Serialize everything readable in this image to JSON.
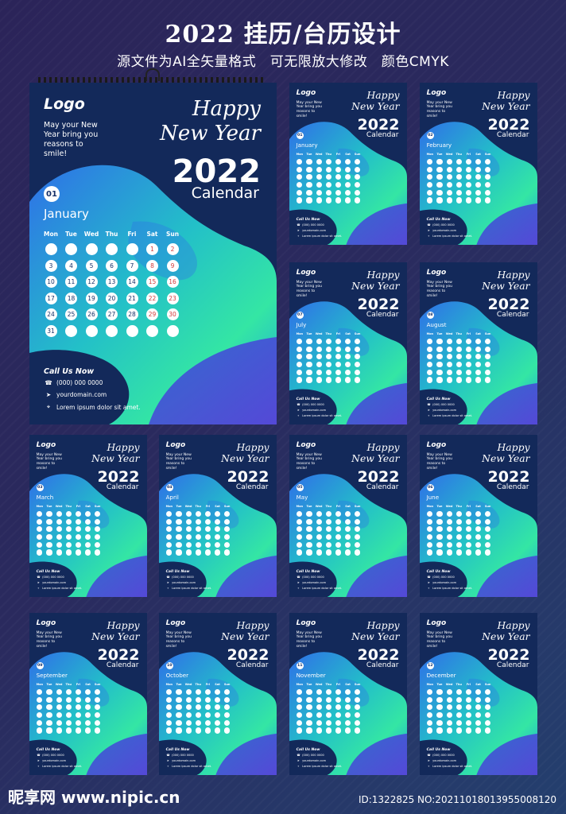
{
  "header": {
    "title": "2022 挂历/台历设计",
    "subtitle": "源文件为AI全矢量格式　可无限放大修改　颜色CMYK"
  },
  "calendar": {
    "logo": "Logo",
    "tagline": [
      "May your New",
      "Year bring you",
      "reasons to",
      "smile!"
    ],
    "tagline_small": [
      "May your New",
      "Year bring you",
      "reasons to",
      "smile!"
    ],
    "happy": "Happy",
    "new_year": "New Year",
    "year": "2022",
    "calendar_word": "Calendar",
    "weekdays": [
      "Mon",
      "Tue",
      "Wed",
      "Thu",
      "Fri",
      "Sat",
      "Sun"
    ],
    "call_us": "Call Us Now",
    "phone": "(000) 000 0000",
    "domain": "yourdomain.com",
    "address": "Lorem ipsum dolor sit amet.",
    "months": [
      {
        "num": "01",
        "name": "January"
      },
      {
        "num": "02",
        "name": "February"
      },
      {
        "num": "03",
        "name": "March"
      },
      {
        "num": "04",
        "name": "April"
      },
      {
        "num": "05",
        "name": "May"
      },
      {
        "num": "06",
        "name": "June"
      },
      {
        "num": "07",
        "name": "July"
      },
      {
        "num": "08",
        "name": "August"
      },
      {
        "num": "09",
        "name": "September"
      },
      {
        "num": "10",
        "name": "October"
      },
      {
        "num": "11",
        "name": "November"
      },
      {
        "num": "12",
        "name": "December"
      }
    ],
    "january_days": [
      [
        "",
        "",
        "",
        "",
        "",
        "1",
        "2"
      ],
      [
        "3",
        "4",
        "5",
        "6",
        "7",
        "8",
        "9"
      ],
      [
        "10",
        "11",
        "12",
        "13",
        "14",
        "15",
        "16"
      ],
      [
        "17",
        "18",
        "19",
        "20",
        "21",
        "22",
        "23"
      ],
      [
        "24",
        "25",
        "26",
        "27",
        "28",
        "29",
        "30"
      ],
      [
        "31",
        "",
        "",
        "",
        "",
        "",
        ""
      ]
    ],
    "weekend_color": "#d23a3a"
  },
  "colors": {
    "navy": "#13295a",
    "blob_top": "#2f6fe8",
    "blob_mid": "#23c0c8",
    "blob_green": "#34e6a4",
    "purple": "#5a3fd6"
  },
  "footer": {
    "site": "昵享网 www.nipic.cn",
    "id": "ID:1322825 NO:20211018013955008120"
  }
}
